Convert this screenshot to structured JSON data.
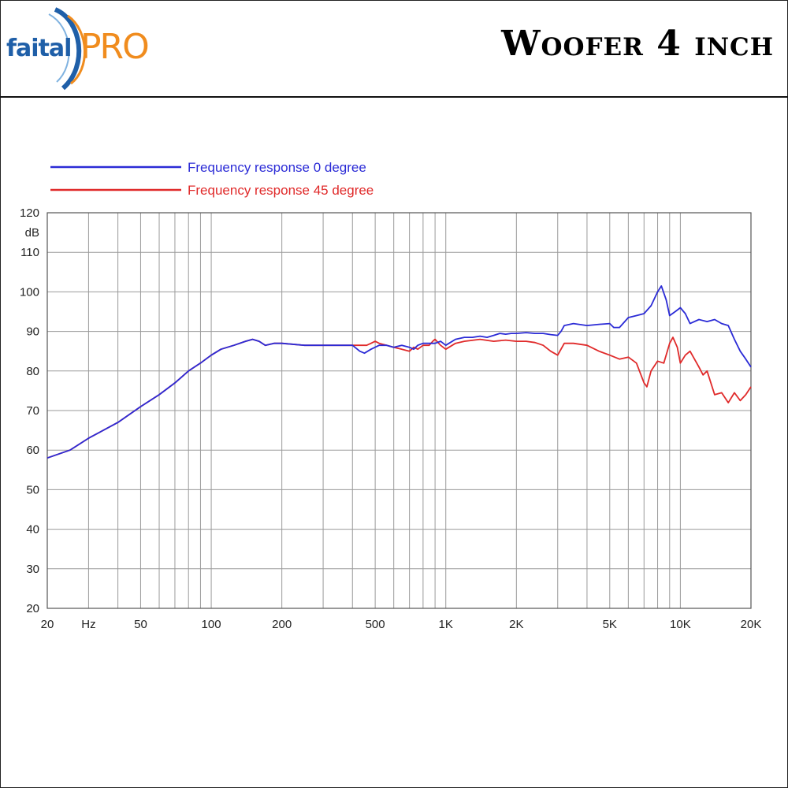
{
  "header": {
    "logo_text": "faital",
    "logo_pro": "PRO",
    "title": "Woofer 4 inch"
  },
  "colors": {
    "series_0deg": "#2b2bd6",
    "series_45deg": "#e02a2a",
    "grid": "#9a9a9a",
    "logo_blue": "#1f5fa8",
    "logo_orange": "#f08c1e"
  },
  "chart_data": {
    "type": "line",
    "xscale": "log",
    "xlim": [
      20,
      20000
    ],
    "ylim": [
      20,
      120
    ],
    "ylabel": "dB",
    "xlabel": "Hz",
    "grid": true,
    "legend_position": "top-left",
    "x_ticks": [
      {
        "value": 20,
        "label": "20"
      },
      {
        "value": 30,
        "label": "Hz"
      },
      {
        "value": 50,
        "label": "50"
      },
      {
        "value": 100,
        "label": "100"
      },
      {
        "value": 200,
        "label": "200"
      },
      {
        "value": 500,
        "label": "500"
      },
      {
        "value": 1000,
        "label": "1K"
      },
      {
        "value": 2000,
        "label": "2K"
      },
      {
        "value": 5000,
        "label": "5K"
      },
      {
        "value": 10000,
        "label": "10K"
      },
      {
        "value": 20000,
        "label": "20K"
      }
    ],
    "y_ticks": [
      20,
      30,
      40,
      50,
      60,
      70,
      80,
      90,
      100,
      110,
      120
    ],
    "series": [
      {
        "name": "Frequency response 0 degree",
        "color": "#2b2bd6",
        "points": [
          [
            20,
            58
          ],
          [
            25,
            60
          ],
          [
            30,
            63
          ],
          [
            40,
            67
          ],
          [
            50,
            71
          ],
          [
            60,
            74
          ],
          [
            70,
            77
          ],
          [
            80,
            80
          ],
          [
            90,
            82
          ],
          [
            100,
            84
          ],
          [
            110,
            85.5
          ],
          [
            125,
            86.5
          ],
          [
            140,
            87.5
          ],
          [
            150,
            88
          ],
          [
            160,
            87.5
          ],
          [
            170,
            86.5
          ],
          [
            185,
            87
          ],
          [
            200,
            87
          ],
          [
            250,
            86.5
          ],
          [
            300,
            86.5
          ],
          [
            350,
            86.5
          ],
          [
            400,
            86.5
          ],
          [
            430,
            85
          ],
          [
            450,
            84.5
          ],
          [
            480,
            85.5
          ],
          [
            520,
            86.5
          ],
          [
            560,
            86.5
          ],
          [
            600,
            86
          ],
          [
            650,
            86.5
          ],
          [
            700,
            86
          ],
          [
            730,
            85.5
          ],
          [
            760,
            86.5
          ],
          [
            800,
            87
          ],
          [
            850,
            87
          ],
          [
            900,
            87
          ],
          [
            950,
            87.5
          ],
          [
            1000,
            86.5
          ],
          [
            1100,
            88
          ],
          [
            1200,
            88.5
          ],
          [
            1300,
            88.5
          ],
          [
            1400,
            88.8
          ],
          [
            1500,
            88.5
          ],
          [
            1600,
            89
          ],
          [
            1700,
            89.5
          ],
          [
            1800,
            89.3
          ],
          [
            1900,
            89.5
          ],
          [
            2000,
            89.5
          ],
          [
            2200,
            89.7
          ],
          [
            2400,
            89.5
          ],
          [
            2600,
            89.5
          ],
          [
            2800,
            89.2
          ],
          [
            3000,
            89
          ],
          [
            3100,
            90
          ],
          [
            3200,
            91.5
          ],
          [
            3500,
            92
          ],
          [
            4000,
            91.5
          ],
          [
            4500,
            91.8
          ],
          [
            5000,
            92
          ],
          [
            5200,
            91
          ],
          [
            5500,
            91
          ],
          [
            6000,
            93.5
          ],
          [
            6500,
            94
          ],
          [
            7000,
            94.5
          ],
          [
            7500,
            96.5
          ],
          [
            8000,
            100
          ],
          [
            8300,
            101.5
          ],
          [
            8700,
            98
          ],
          [
            9000,
            94
          ],
          [
            9500,
            95
          ],
          [
            10000,
            96
          ],
          [
            10500,
            94.5
          ],
          [
            11000,
            92
          ],
          [
            12000,
            93
          ],
          [
            13000,
            92.5
          ],
          [
            14000,
            93
          ],
          [
            15000,
            92
          ],
          [
            16000,
            91.5
          ],
          [
            17000,
            88
          ],
          [
            18000,
            85
          ],
          [
            19000,
            83
          ],
          [
            20000,
            81
          ]
        ]
      },
      {
        "name": "Frequency response 45 degree",
        "color": "#e02a2a",
        "points": [
          [
            20,
            58
          ],
          [
            25,
            60
          ],
          [
            30,
            63
          ],
          [
            40,
            67
          ],
          [
            50,
            71
          ],
          [
            60,
            74
          ],
          [
            70,
            77
          ],
          [
            80,
            80
          ],
          [
            90,
            82
          ],
          [
            100,
            84
          ],
          [
            110,
            85.5
          ],
          [
            125,
            86.5
          ],
          [
            140,
            87.5
          ],
          [
            150,
            88
          ],
          [
            160,
            87.5
          ],
          [
            170,
            86.5
          ],
          [
            185,
            87
          ],
          [
            200,
            87
          ],
          [
            250,
            86.5
          ],
          [
            300,
            86.5
          ],
          [
            350,
            86.5
          ],
          [
            400,
            86.5
          ],
          [
            430,
            86.5
          ],
          [
            460,
            86.5
          ],
          [
            480,
            87
          ],
          [
            500,
            87.5
          ],
          [
            520,
            87
          ],
          [
            560,
            86.5
          ],
          [
            600,
            86
          ],
          [
            650,
            85.5
          ],
          [
            700,
            85
          ],
          [
            730,
            86
          ],
          [
            760,
            85.5
          ],
          [
            800,
            86.5
          ],
          [
            850,
            86.5
          ],
          [
            880,
            87.5
          ],
          [
            900,
            88
          ],
          [
            950,
            86.5
          ],
          [
            1000,
            85.5
          ],
          [
            1100,
            87
          ],
          [
            1200,
            87.5
          ],
          [
            1400,
            88
          ],
          [
            1600,
            87.5
          ],
          [
            1800,
            87.8
          ],
          [
            2000,
            87.5
          ],
          [
            2200,
            87.5
          ],
          [
            2400,
            87.2
          ],
          [
            2600,
            86.5
          ],
          [
            2800,
            85
          ],
          [
            3000,
            84
          ],
          [
            3200,
            87
          ],
          [
            3500,
            87
          ],
          [
            4000,
            86.5
          ],
          [
            4500,
            85
          ],
          [
            5000,
            84
          ],
          [
            5500,
            83
          ],
          [
            6000,
            83.5
          ],
          [
            6500,
            82
          ],
          [
            7000,
            77
          ],
          [
            7200,
            76
          ],
          [
            7500,
            80
          ],
          [
            8000,
            82.5
          ],
          [
            8500,
            82
          ],
          [
            9000,
            87
          ],
          [
            9300,
            88.5
          ],
          [
            9700,
            86
          ],
          [
            10000,
            82
          ],
          [
            10500,
            84
          ],
          [
            11000,
            85
          ],
          [
            12000,
            81
          ],
          [
            12500,
            79
          ],
          [
            13000,
            80
          ],
          [
            14000,
            74
          ],
          [
            15000,
            74.5
          ],
          [
            16000,
            72
          ],
          [
            17000,
            74.5
          ],
          [
            18000,
            72.5
          ],
          [
            19000,
            74
          ],
          [
            20000,
            76
          ]
        ]
      }
    ]
  }
}
